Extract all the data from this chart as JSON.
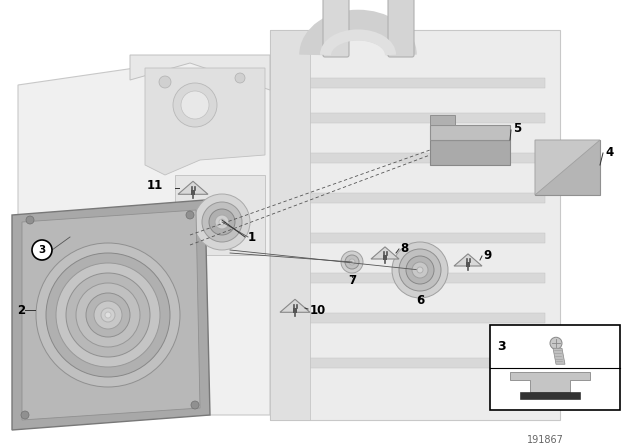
{
  "background_color": "#ffffff",
  "diagram_number": "191867",
  "frame_color": "#e8e8e8",
  "frame_edge": "#c0c0c0",
  "part_light": "#e0e0e0",
  "part_mid": "#c8c8c8",
  "part_dark": "#a8a8a8",
  "part_darker": "#909090",
  "woofer_box_color": "#b0b0b0",
  "woofer_box_edge": "#808080",
  "triangle_fill": "#d8d8d8",
  "triangle_edge": "#888888",
  "label_color": "#000000",
  "line_color": "#555555",
  "inset_bg": "#ffffff",
  "inset_edge": "#000000"
}
